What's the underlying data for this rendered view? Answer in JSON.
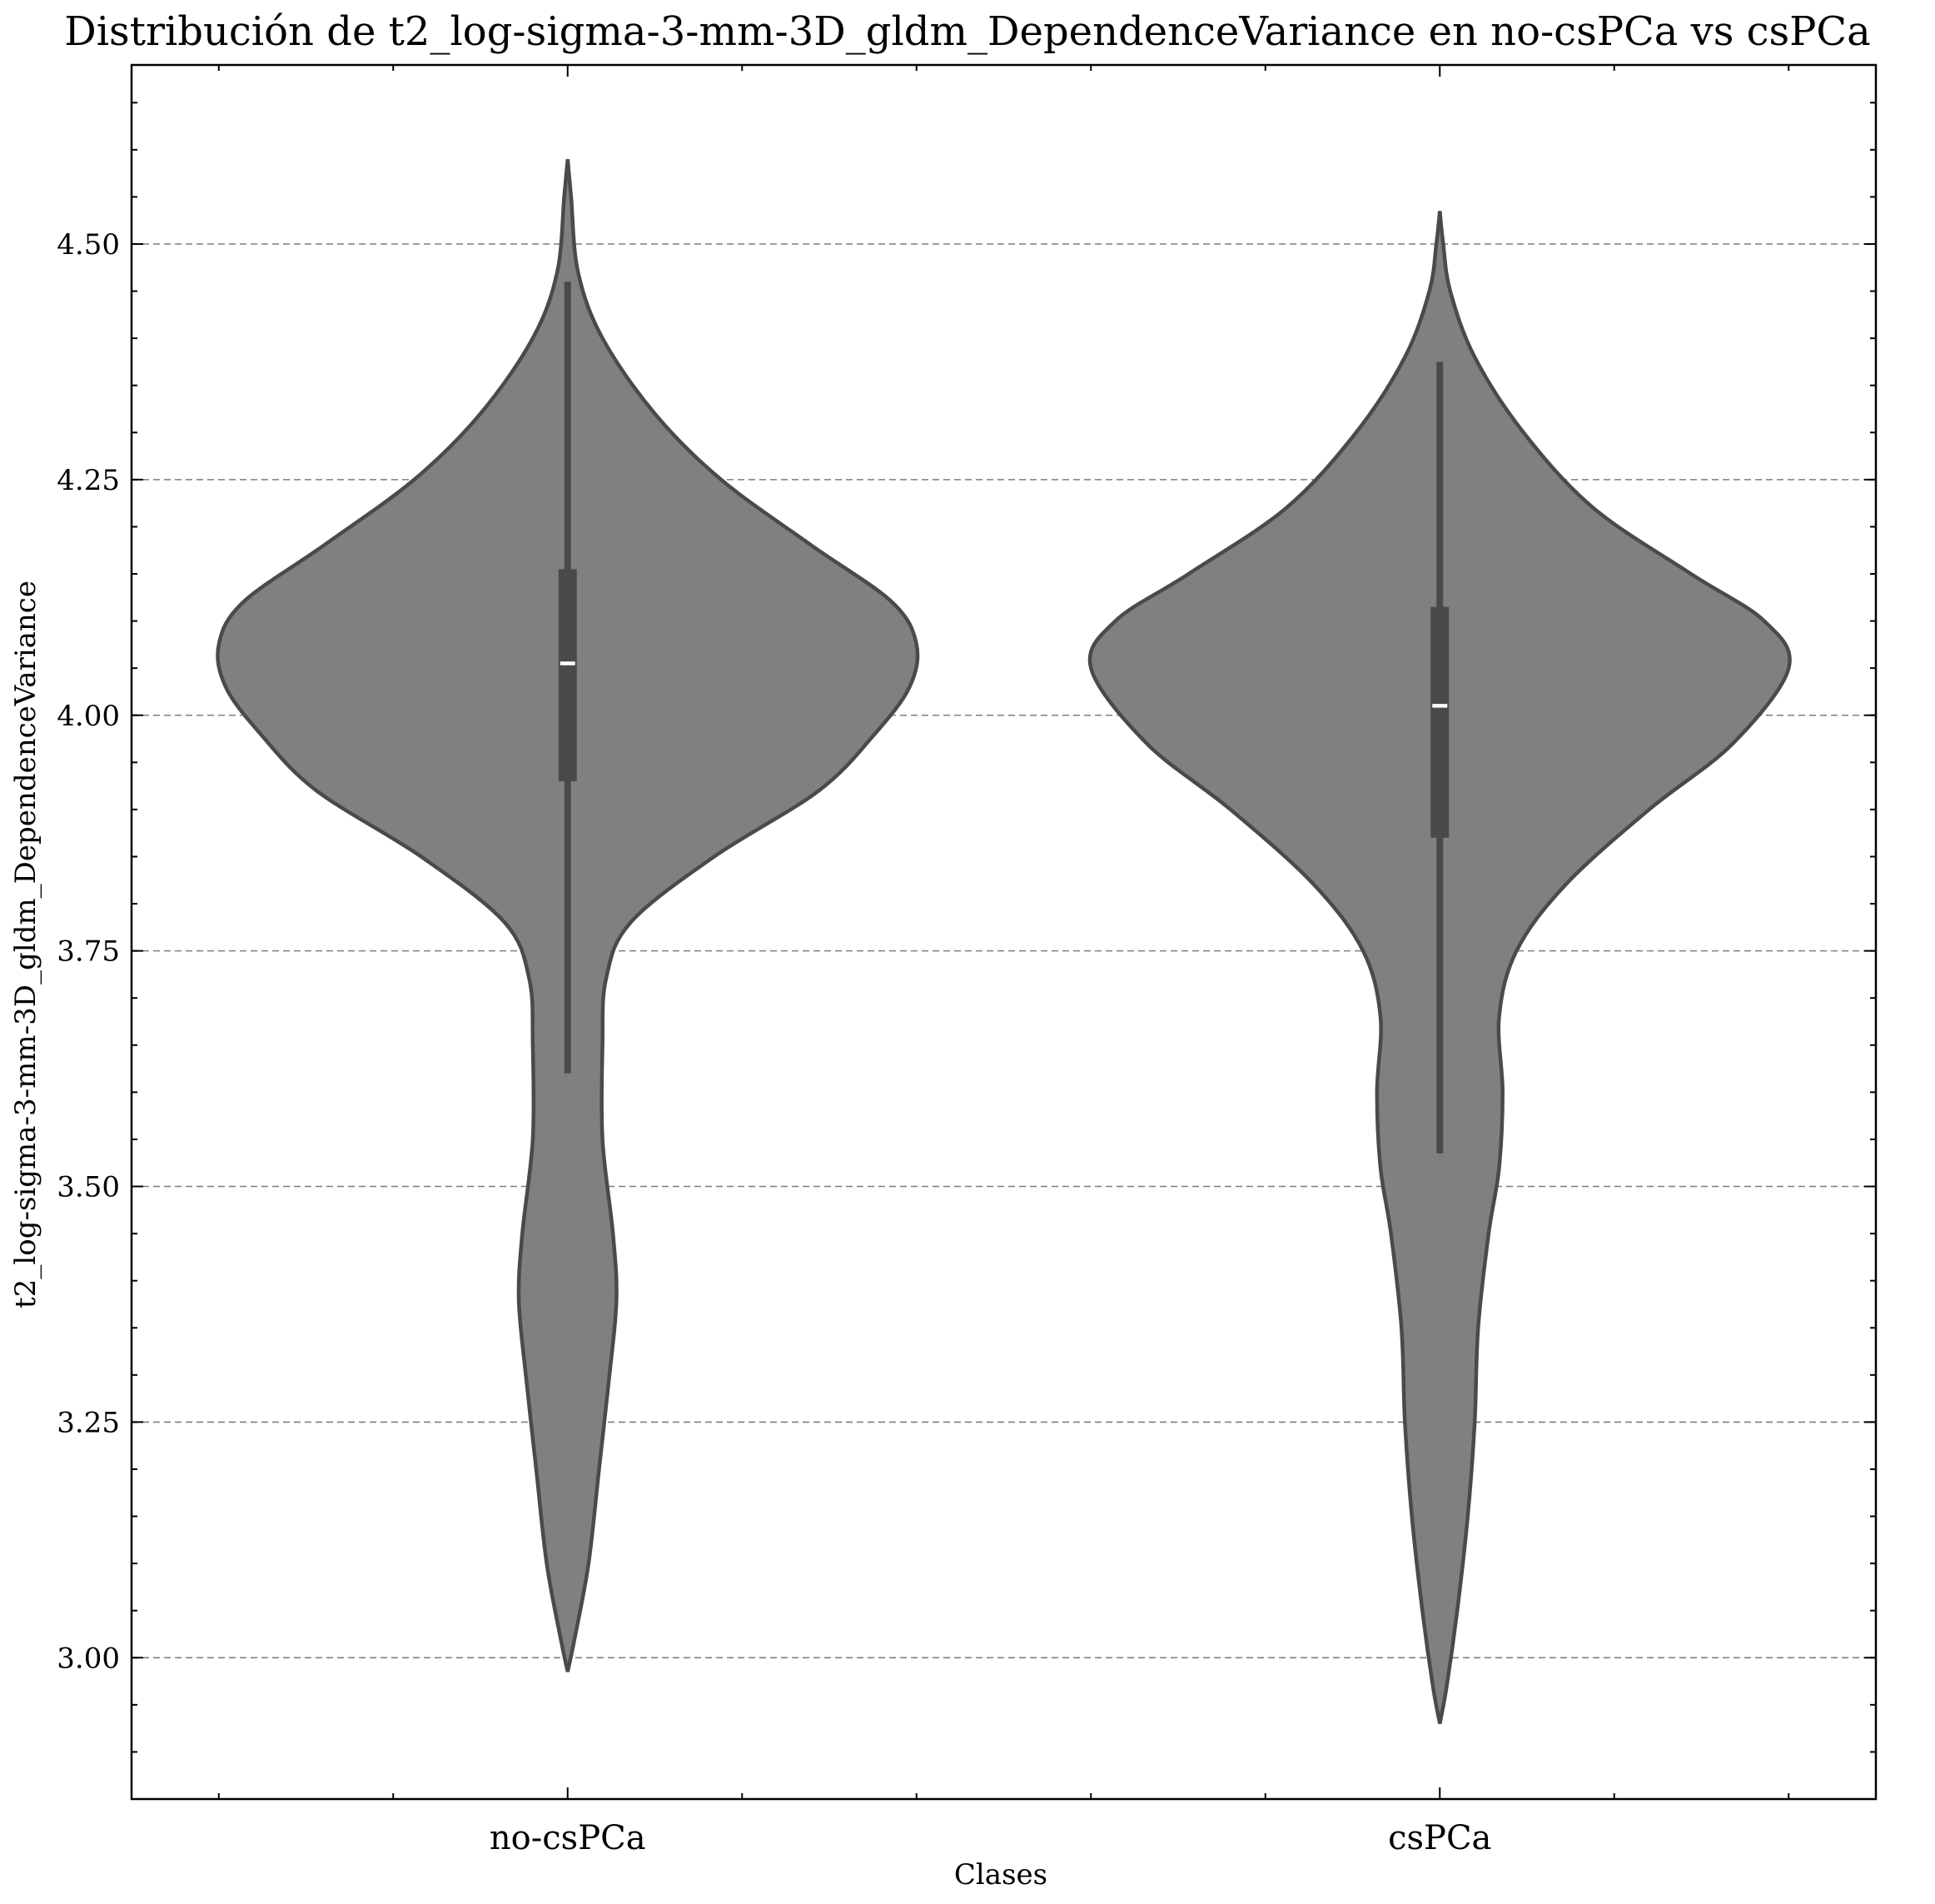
{
  "chart_data": {
    "type": "violin",
    "title": "Distribución de t2_log-sigma-3-mm-3D_gldm_DependenceVariance en no-csPCa vs csPCa",
    "xlabel": "Clases",
    "ylabel": "t2_log-sigma-3-mm-3D_gldm_DependenceVariance",
    "ylim": [
      2.85,
      4.69
    ],
    "yticks": [
      3.0,
      3.25,
      3.5,
      3.75,
      4.0,
      4.25,
      4.5
    ],
    "ytick_labels": [
      "3.00",
      "3.25",
      "3.50",
      "3.75",
      "4.00",
      "4.25",
      "4.50"
    ],
    "grid": "y, dashed",
    "colors": {
      "fill": "#808080",
      "edge": "#4a4a4a",
      "median": "#ffffff"
    },
    "categories": [
      "no-csPCa",
      "csPCa"
    ],
    "series": [
      {
        "category": "no-csPCa",
        "median": 4.055,
        "q1": 3.93,
        "q3": 4.155,
        "whisker_low": 3.62,
        "whisker_high": 4.46,
        "density": [
          [
            2.985,
            0.0
          ],
          [
            3.02,
            0.02
          ],
          [
            3.1,
            0.06
          ],
          [
            3.2,
            0.09
          ],
          [
            3.3,
            0.12
          ],
          [
            3.38,
            0.14
          ],
          [
            3.45,
            0.13
          ],
          [
            3.55,
            0.1
          ],
          [
            3.65,
            0.1
          ],
          [
            3.72,
            0.11
          ],
          [
            3.78,
            0.18
          ],
          [
            3.85,
            0.42
          ],
          [
            3.92,
            0.72
          ],
          [
            3.98,
            0.88
          ],
          [
            4.03,
            0.98
          ],
          [
            4.075,
            1.0
          ],
          [
            4.12,
            0.93
          ],
          [
            4.18,
            0.7
          ],
          [
            4.25,
            0.44
          ],
          [
            4.32,
            0.25
          ],
          [
            4.4,
            0.1
          ],
          [
            4.47,
            0.03
          ],
          [
            4.55,
            0.01
          ],
          [
            4.59,
            0.0
          ]
        ]
      },
      {
        "category": "csPCa",
        "median": 4.01,
        "q1": 3.87,
        "q3": 4.115,
        "whisker_low": 3.535,
        "whisker_high": 4.375,
        "density": [
          [
            2.93,
            0.0
          ],
          [
            2.97,
            0.02
          ],
          [
            3.05,
            0.05
          ],
          [
            3.15,
            0.08
          ],
          [
            3.25,
            0.1
          ],
          [
            3.35,
            0.11
          ],
          [
            3.45,
            0.14
          ],
          [
            3.52,
            0.17
          ],
          [
            3.6,
            0.18
          ],
          [
            3.68,
            0.17
          ],
          [
            3.75,
            0.22
          ],
          [
            3.82,
            0.36
          ],
          [
            3.9,
            0.6
          ],
          [
            3.97,
            0.84
          ],
          [
            4.05,
            1.0
          ],
          [
            4.1,
            0.93
          ],
          [
            4.15,
            0.72
          ],
          [
            4.22,
            0.44
          ],
          [
            4.3,
            0.24
          ],
          [
            4.38,
            0.1
          ],
          [
            4.45,
            0.03
          ],
          [
            4.5,
            0.01
          ],
          [
            4.535,
            0.0
          ]
        ]
      }
    ]
  }
}
